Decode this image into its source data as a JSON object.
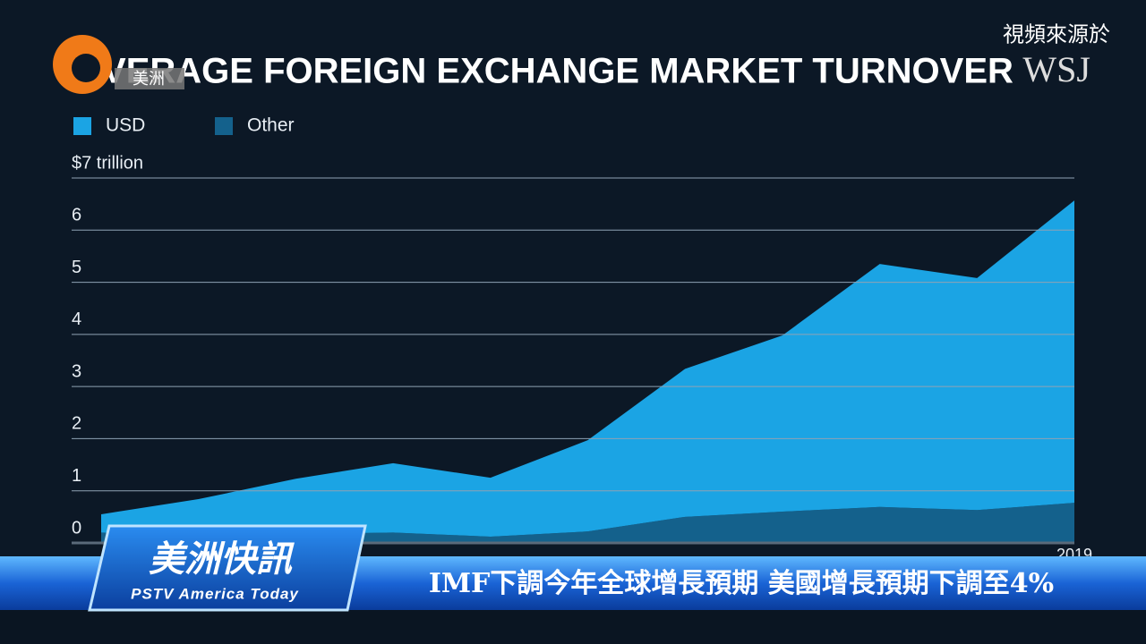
{
  "chart_data": {
    "type": "area",
    "stacked": true,
    "title": "AVERAGE FOREIGN EXCHANGE MARKET TURNOVER",
    "categories": [
      null,
      null,
      null,
      null,
      null,
      null,
      null,
      null,
      null,
      null,
      "2019"
    ],
    "series": [
      {
        "name": "USD",
        "color": "#1ba4e4",
        "values": [
          0.35,
          0.69,
          1.06,
          1.33,
          1.13,
          1.75,
          2.84,
          3.38,
          4.66,
          4.45,
          5.8
        ]
      },
      {
        "name": "Other",
        "color": "#14618c",
        "values": [
          0.2,
          0.15,
          0.17,
          0.2,
          0.12,
          0.22,
          0.5,
          0.6,
          0.69,
          0.63,
          0.77
        ]
      }
    ],
    "ylim": [
      0,
      7
    ],
    "yticks": [
      0,
      1,
      2,
      3,
      4,
      5,
      6,
      {
        "value": 7,
        "label": "$7 trillion"
      }
    ],
    "grid": true
  },
  "source": {
    "label": "視頻來源於",
    "brand": "WSJ",
    "channel_tag": "美洲"
  },
  "banner": {
    "show": "美洲快訊",
    "show_en": "PSTV America Today",
    "headline": "IMF下調今年全球增長預期 美國增長預期下調至4%"
  }
}
